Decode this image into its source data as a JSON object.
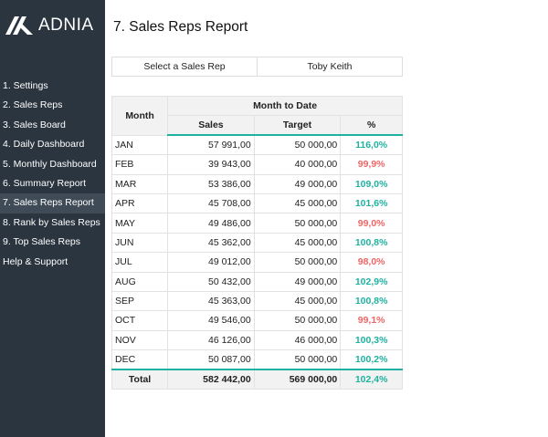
{
  "brand": {
    "name": "ADNIA"
  },
  "colors": {
    "sidebar": "#2b353f",
    "accent": "#20b2a0",
    "negative": "#f06464"
  },
  "sidebar": {
    "items": [
      {
        "label": "1. Settings"
      },
      {
        "label": "2. Sales Reps"
      },
      {
        "label": "3. Sales Board"
      },
      {
        "label": "4. Daily Dashboard"
      },
      {
        "label": "5. Monthly Dashboard"
      },
      {
        "label": "6. Summary Report"
      },
      {
        "label": "7. Sales Reps Report",
        "active": true
      },
      {
        "label": "8. Rank by Sales Reps"
      },
      {
        "label": "9. Top Sales Reps"
      },
      {
        "label": "Help & Support"
      }
    ]
  },
  "page": {
    "title": "7. Sales Reps Report"
  },
  "selector": {
    "label": "Select a Sales Rep",
    "value": "Toby Keith"
  },
  "table": {
    "headers": {
      "month": "Month",
      "group": "Month to Date",
      "sales": "Sales",
      "target": "Target",
      "pct": "%"
    },
    "rows": [
      {
        "month": "JAN",
        "sales": "57 991,00",
        "target": "50 000,00",
        "pct": "116,0%",
        "status": "pos"
      },
      {
        "month": "FEB",
        "sales": "39 943,00",
        "target": "40 000,00",
        "pct": "99,9%",
        "status": "neg"
      },
      {
        "month": "MAR",
        "sales": "53 386,00",
        "target": "49 000,00",
        "pct": "109,0%",
        "status": "pos"
      },
      {
        "month": "APR",
        "sales": "45 708,00",
        "target": "45 000,00",
        "pct": "101,6%",
        "status": "pos"
      },
      {
        "month": "MAY",
        "sales": "49 486,00",
        "target": "50 000,00",
        "pct": "99,0%",
        "status": "neg"
      },
      {
        "month": "JUN",
        "sales": "45 362,00",
        "target": "45 000,00",
        "pct": "100,8%",
        "status": "pos"
      },
      {
        "month": "JUL",
        "sales": "49 012,00",
        "target": "50 000,00",
        "pct": "98,0%",
        "status": "neg"
      },
      {
        "month": "AUG",
        "sales": "50 432,00",
        "target": "49 000,00",
        "pct": "102,9%",
        "status": "pos"
      },
      {
        "month": "SEP",
        "sales": "45 363,00",
        "target": "45 000,00",
        "pct": "100,8%",
        "status": "pos"
      },
      {
        "month": "OCT",
        "sales": "49 546,00",
        "target": "50 000,00",
        "pct": "99,1%",
        "status": "neg"
      },
      {
        "month": "NOV",
        "sales": "46 126,00",
        "target": "46 000,00",
        "pct": "100,3%",
        "status": "pos"
      },
      {
        "month": "DEC",
        "sales": "50 087,00",
        "target": "50 000,00",
        "pct": "100,2%",
        "status": "pos"
      }
    ],
    "total": {
      "label": "Total",
      "sales": "582 442,00",
      "target": "569 000,00",
      "pct": "102,4%"
    }
  }
}
